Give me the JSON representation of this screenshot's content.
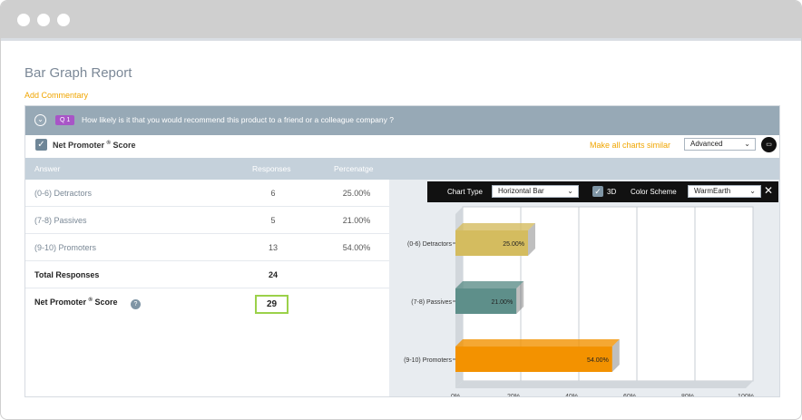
{
  "page": {
    "title": "Bar Graph Report",
    "add_commentary": "Add Commentary"
  },
  "question": {
    "badge": "Q 1",
    "text": "How likely is it that you would recommend this product to a friend or a colleague company ?"
  },
  "nps_header": {
    "title": "Net Promoter",
    "title_suffix": "Score",
    "mark": "®",
    "make_similar": "Make all charts similar",
    "mode": "Advanced"
  },
  "table": {
    "headers": [
      "Answer",
      "Responses",
      "Percenatge"
    ],
    "rows": [
      {
        "answer": "(0-6) Detractors",
        "responses": "6",
        "percentage": "25.00%"
      },
      {
        "answer": "(7-8) Passives",
        "responses": "5",
        "percentage": "21.00%"
      },
      {
        "answer": "(9-10) Promoters",
        "responses": "13",
        "percentage": "54.00%"
      }
    ],
    "total_label": "Total Responses",
    "total_value": "24",
    "nps_label": "Net Promoter",
    "nps_label_suffix": "Score",
    "nps_value": "29"
  },
  "chart_toolbar": {
    "chart_type_label": "Chart Type",
    "chart_type_value": "Horizontal Bar",
    "three_d_label": "3D",
    "color_scheme_label": "Color Scheme",
    "color_scheme_value": "WarmEarth"
  },
  "chart_data": {
    "type": "bar",
    "orientation": "horizontal",
    "categories": [
      "(0-6) Detractors",
      "(7-8) Passives",
      "(9-10) Promoters"
    ],
    "values": [
      25,
      21,
      54
    ],
    "value_labels": [
      "25.00%",
      "21.00%",
      "54.00%"
    ],
    "xlim": [
      0,
      100
    ],
    "x_ticks": [
      "0%",
      "20%",
      "40%",
      "60%",
      "80%",
      "100%"
    ],
    "colors": [
      "#d4bc5f",
      "#5e8f8a",
      "#f39200"
    ],
    "grid": true,
    "three_d": true
  },
  "colors": {
    "accent": "#f0a500",
    "question_bar": "#97a9b6",
    "score_border": "#9bd14a"
  }
}
